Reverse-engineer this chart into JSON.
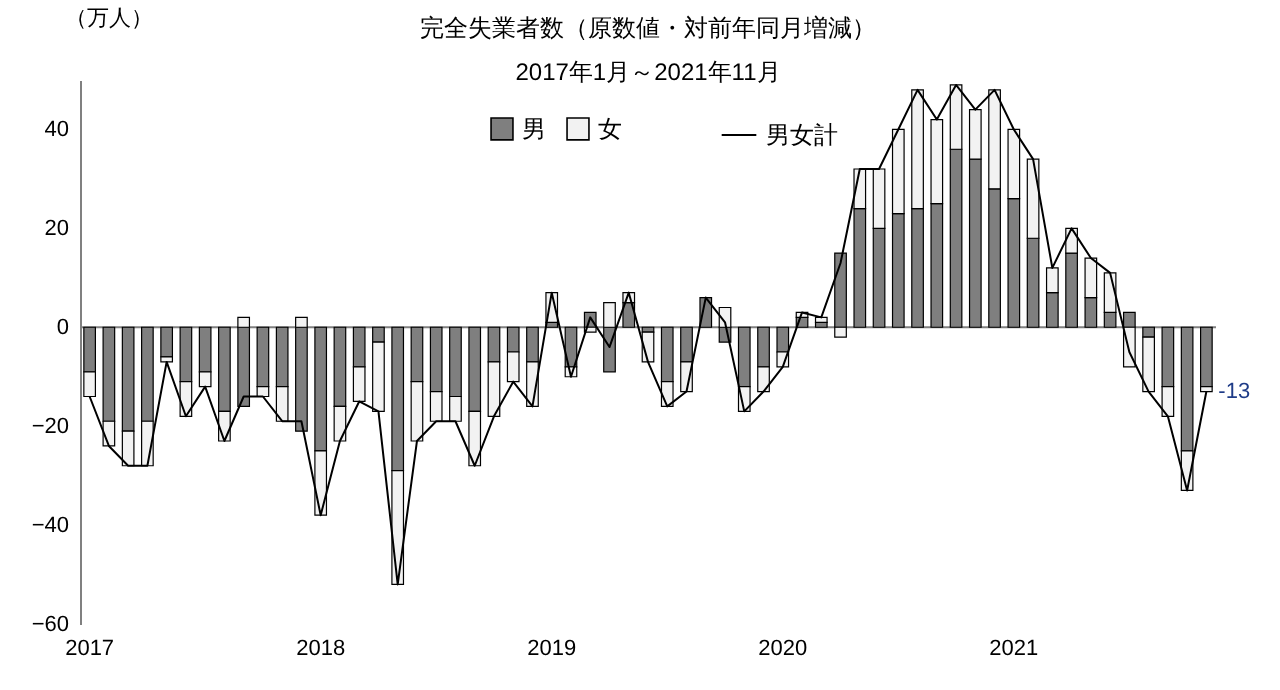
{
  "chart_data": {
    "type": "bar",
    "title": "完全失業者数（原数値・対前年同月増減）",
    "subtitle": "2017年1月～2021年11月",
    "ylabel": "（万人）",
    "categories": [
      "2017",
      null,
      null,
      null,
      null,
      null,
      null,
      null,
      null,
      null,
      null,
      null,
      "2018",
      null,
      null,
      null,
      null,
      null,
      null,
      null,
      null,
      null,
      null,
      null,
      "2019",
      null,
      null,
      null,
      null,
      null,
      null,
      null,
      null,
      null,
      null,
      null,
      "2020",
      null,
      null,
      null,
      null,
      null,
      null,
      null,
      null,
      null,
      null,
      null,
      "2021",
      null,
      null,
      null,
      null,
      null,
      null,
      null,
      null,
      null,
      null
    ],
    "stacked": true,
    "series": [
      {
        "name": "男",
        "color": "#7f7f7f",
        "values": [
          -9,
          -19,
          -21,
          -19,
          -6,
          -11,
          -9,
          -17,
          -16,
          -12,
          -12,
          -21,
          -25,
          -16,
          -8,
          -3,
          -29,
          -11,
          -13,
          -14,
          -17,
          -7,
          -5,
          -7,
          1,
          -8,
          3,
          -9,
          5,
          -1,
          -11,
          -7,
          6,
          -3,
          -12,
          -8,
          -5,
          2,
          1,
          15,
          24,
          20,
          23,
          24,
          25,
          36,
          34,
          28,
          26,
          18,
          7,
          15,
          6,
          3,
          3,
          -2,
          -12,
          -25,
          -12
        ]
      },
      {
        "name": "女",
        "color": "#f2f2f2",
        "values": [
          -5,
          -5,
          -7,
          -9,
          -1,
          -7,
          -3,
          -6,
          2,
          -2,
          -7,
          2,
          -13,
          -7,
          -7,
          -14,
          -23,
          -12,
          -6,
          -5,
          -11,
          -11,
          -6,
          -9,
          6,
          -2,
          -1,
          5,
          2,
          -6,
          -5,
          -6,
          null,
          4,
          -5,
          -5,
          -3,
          1,
          1,
          -2,
          8,
          12,
          17,
          24,
          17,
          13,
          10,
          20,
          14,
          16,
          5,
          5,
          8,
          8,
          -8,
          -11,
          -6,
          -8,
          -1
        ]
      },
      {
        "name": "男女計",
        "type": "line",
        "color": "#000000",
        "values": [
          -14,
          -24,
          -28,
          -28,
          -7,
          -18,
          -12,
          -23,
          -14,
          -14,
          -19,
          -19,
          -38,
          -23,
          -15,
          -17,
          -52,
          -23,
          -19,
          -19,
          -28,
          -18,
          -11,
          -16,
          7,
          -10,
          2,
          -4,
          7,
          -7,
          -16,
          -13,
          6,
          1,
          -17,
          -13,
          -8,
          3,
          2,
          13,
          32,
          32,
          40,
          48,
          42,
          49,
          44,
          48,
          40,
          34,
          12,
          20,
          14,
          11,
          -5,
          -13,
          -18,
          -33,
          -13
        ]
      }
    ],
    "annotations": [
      "-13"
    ],
    "ylim": [
      -60,
      50
    ],
    "yticks": [
      -60,
      -40,
      -20,
      0,
      20,
      40
    ],
    "legend": "top"
  }
}
